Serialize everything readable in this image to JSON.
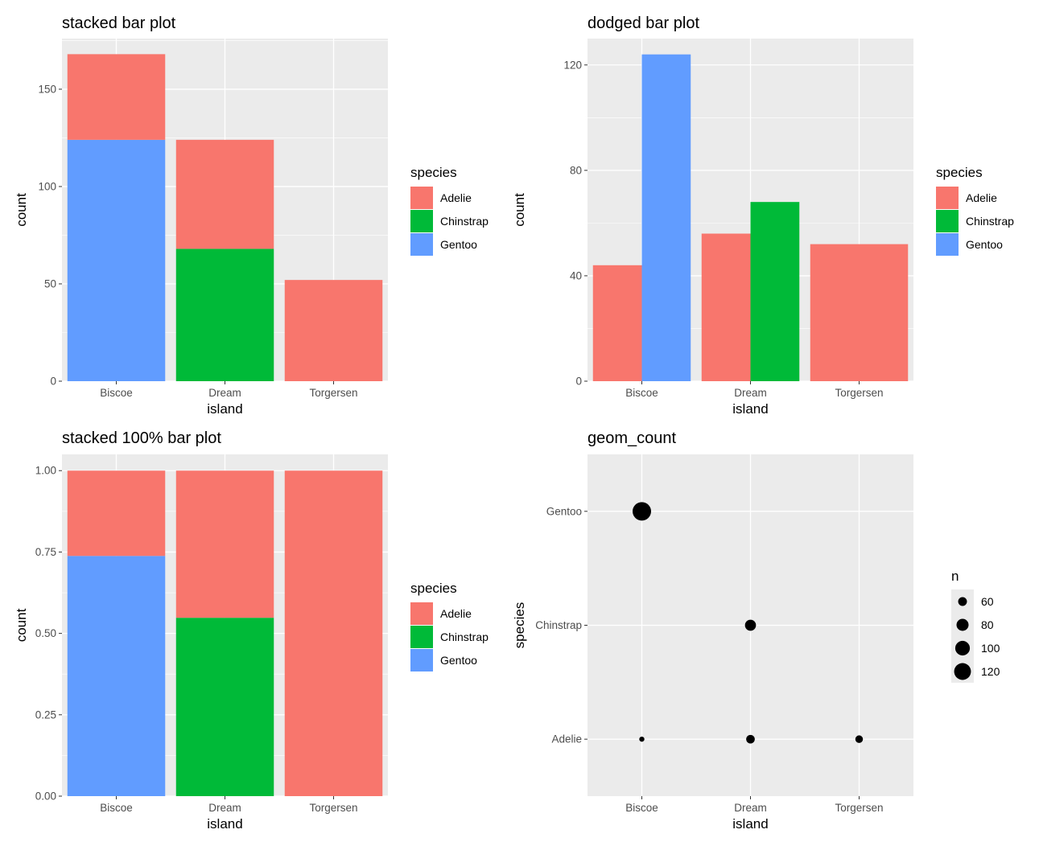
{
  "palette": {
    "Adelie": "#F8766D",
    "Chinstrap": "#00BA38",
    "Gentoo": "#619CFF",
    "panel_bg": "#EBEBEB",
    "grid": "#FFFFFF",
    "point": "#000000"
  },
  "chart_data": [
    {
      "id": "stacked",
      "type": "bar",
      "title": "stacked bar plot",
      "xlabel": "island",
      "ylabel": "count",
      "categories": [
        "Biscoe",
        "Dream",
        "Torgersen"
      ],
      "series": [
        {
          "name": "Gentoo",
          "values": [
            124,
            0,
            0
          ]
        },
        {
          "name": "Chinstrap",
          "values": [
            0,
            68,
            0
          ]
        },
        {
          "name": "Adelie",
          "values": [
            44,
            56,
            52
          ]
        }
      ],
      "ylim": [
        0,
        176
      ],
      "yticks": [
        0,
        50,
        100,
        150
      ],
      "ytick_labels": [
        "0",
        "50",
        "100",
        "150"
      ],
      "legend": {
        "title": "species",
        "entries": [
          "Adelie",
          "Chinstrap",
          "Gentoo"
        ],
        "position": "right"
      }
    },
    {
      "id": "dodged",
      "type": "bar",
      "title": "dodged bar plot",
      "xlabel": "island",
      "ylabel": "count",
      "categories": [
        "Biscoe",
        "Dream",
        "Torgersen"
      ],
      "series": [
        {
          "name": "Adelie",
          "values": [
            44,
            56,
            52
          ]
        },
        {
          "name": "Chinstrap",
          "values": [
            null,
            68,
            null
          ]
        },
        {
          "name": "Gentoo",
          "values": [
            124,
            null,
            null
          ]
        }
      ],
      "ylim": [
        0,
        130
      ],
      "yticks": [
        0,
        40,
        80,
        120
      ],
      "ytick_labels": [
        "0",
        "40",
        "80",
        "120"
      ],
      "legend": {
        "title": "species",
        "entries": [
          "Adelie",
          "Chinstrap",
          "Gentoo"
        ],
        "position": "right"
      }
    },
    {
      "id": "fill",
      "type": "bar",
      "title": "stacked 100% bar plot",
      "xlabel": "island",
      "ylabel": "count",
      "categories": [
        "Biscoe",
        "Dream",
        "Torgersen"
      ],
      "series": [
        {
          "name": "Gentoo",
          "values": [
            0.738,
            0,
            0
          ]
        },
        {
          "name": "Chinstrap",
          "values": [
            0,
            0.548,
            0
          ]
        },
        {
          "name": "Adelie",
          "values": [
            0.262,
            0.452,
            1.0
          ]
        }
      ],
      "ylim": [
        0,
        1.05
      ],
      "yticks": [
        0,
        0.25,
        0.5,
        0.75,
        1.0
      ],
      "ytick_labels": [
        "0.00",
        "0.25",
        "0.50",
        "0.75",
        "1.00"
      ],
      "legend": {
        "title": "species",
        "entries": [
          "Adelie",
          "Chinstrap",
          "Gentoo"
        ],
        "position": "right"
      }
    },
    {
      "id": "count",
      "type": "scatter",
      "title": "geom_count",
      "xlabel": "island",
      "ylabel": "species",
      "x_categories": [
        "Biscoe",
        "Dream",
        "Torgersen"
      ],
      "y_categories": [
        "Adelie",
        "Chinstrap",
        "Gentoo"
      ],
      "points": [
        {
          "x": "Biscoe",
          "y": "Gentoo",
          "n": 124
        },
        {
          "x": "Dream",
          "y": "Chinstrap",
          "n": 68
        },
        {
          "x": "Biscoe",
          "y": "Adelie",
          "n": 44
        },
        {
          "x": "Dream",
          "y": "Adelie",
          "n": 56
        },
        {
          "x": "Torgersen",
          "y": "Adelie",
          "n": 52
        }
      ],
      "legend": {
        "title": "n",
        "entries": [
          "60",
          "80",
          "100",
          "120"
        ],
        "values": [
          60,
          80,
          100,
          120
        ],
        "position": "right"
      }
    }
  ]
}
